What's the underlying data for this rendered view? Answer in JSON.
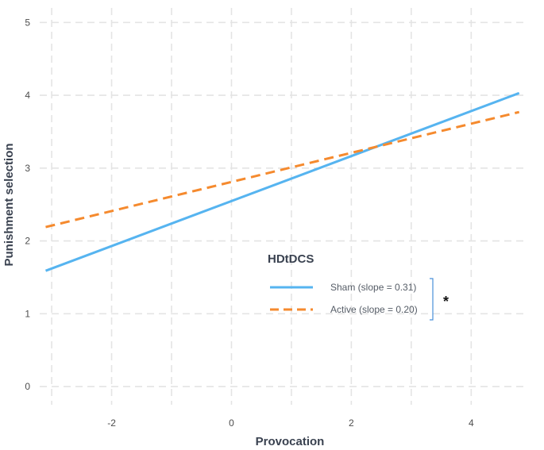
{
  "chart_data": {
    "type": "line",
    "xlabel": "Provocation",
    "ylabel": "Punishment selection",
    "xlim": [
      -3.2,
      4.95
    ],
    "ylim": [
      -0.25,
      5.2
    ],
    "x_ticks": [
      -2,
      0,
      2,
      4
    ],
    "y_ticks": [
      0,
      1,
      2,
      3,
      4,
      5
    ],
    "grid": true,
    "legend": {
      "title": "HDtDCS",
      "placement": "center-right",
      "annotation": "*"
    },
    "series": [
      {
        "name": "Sham (slope = 0.31)",
        "color": "#56b4f0",
        "dash": "solid",
        "x": [
          -3.1,
          4.8
        ],
        "y": [
          1.59,
          4.03
        ]
      },
      {
        "name": "Active (slope = 0.20)",
        "color": "#f58a2e",
        "dash": "dashed",
        "x": [
          -3.1,
          4.8
        ],
        "y": [
          2.19,
          3.77
        ]
      }
    ]
  }
}
